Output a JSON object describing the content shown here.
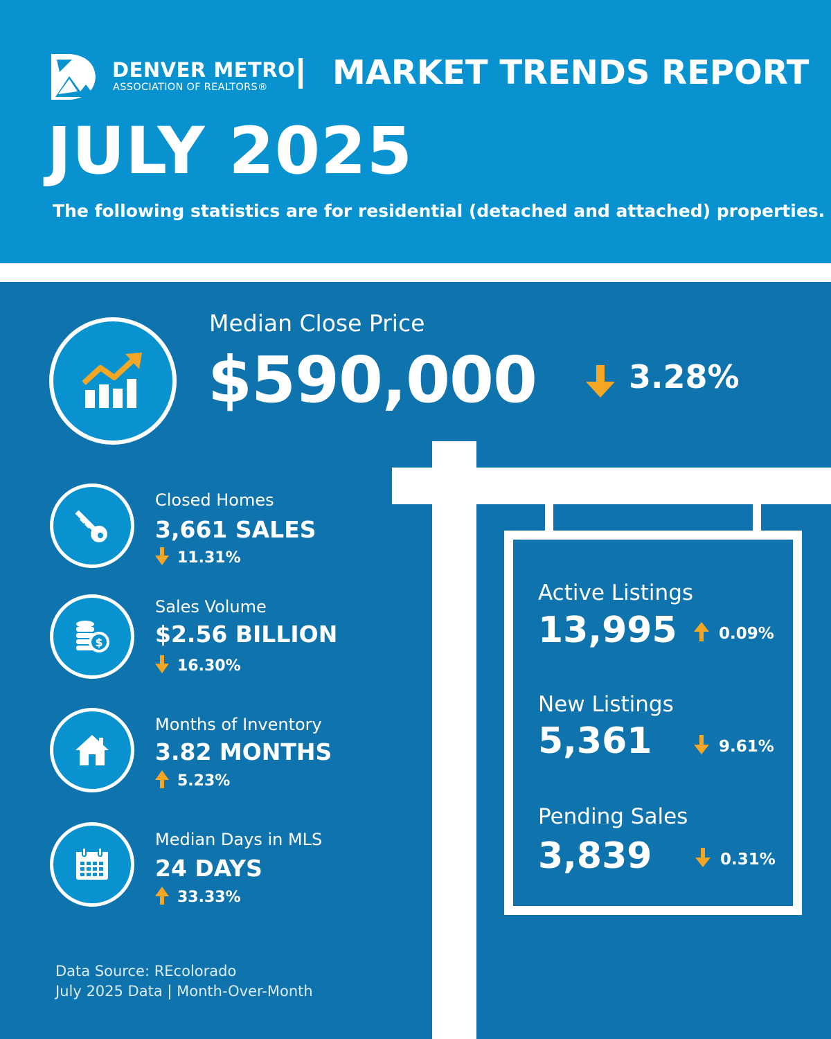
{
  "header": {
    "org_name": "DENVER METRO",
    "org_subname": "ASSOCIATION OF REALTORS®",
    "report_title": "MARKET TRENDS REPORT",
    "month": "JULY 2025",
    "subtitle": "The following statistics are for residential (detached and attached) properties."
  },
  "colors": {
    "header_bg": "#0893d0",
    "body_bg": "#0f74ad",
    "arrow": "#f5a623",
    "text": "#ffffff"
  },
  "median_close_price": {
    "label": "Median Close Price",
    "value": "$590,000",
    "direction": "down",
    "change": "3.28%",
    "icon": "chart-growth-icon"
  },
  "stats": [
    {
      "label": "Closed Homes",
      "value": "3,661 SALES",
      "direction": "down",
      "change": "11.31%",
      "icon": "key-icon"
    },
    {
      "label": "Sales Volume",
      "value": "$2.56 BILLION",
      "direction": "down",
      "change": "16.30%",
      "icon": "coins-dollar-icon"
    },
    {
      "label": "Months of Inventory",
      "value": "3.82 MONTHS",
      "direction": "up",
      "change": "5.23%",
      "icon": "house-icon"
    },
    {
      "label": "Median Days in MLS",
      "value": "24 DAYS",
      "direction": "up",
      "change": "33.33%",
      "icon": "calendar-icon"
    }
  ],
  "sign": {
    "active": {
      "label": "Active Listings",
      "value": "13,995",
      "direction": "up",
      "change": "0.09%"
    },
    "new": {
      "label": "New Listings",
      "value": "5,361",
      "direction": "down",
      "change": "9.61%"
    },
    "pending": {
      "label": "Pending Sales",
      "value": "3,839",
      "direction": "down",
      "change": "0.31%"
    }
  },
  "footer": {
    "source": "Data Source: REcolorado",
    "note": "July 2025 Data | Month-Over-Month"
  }
}
